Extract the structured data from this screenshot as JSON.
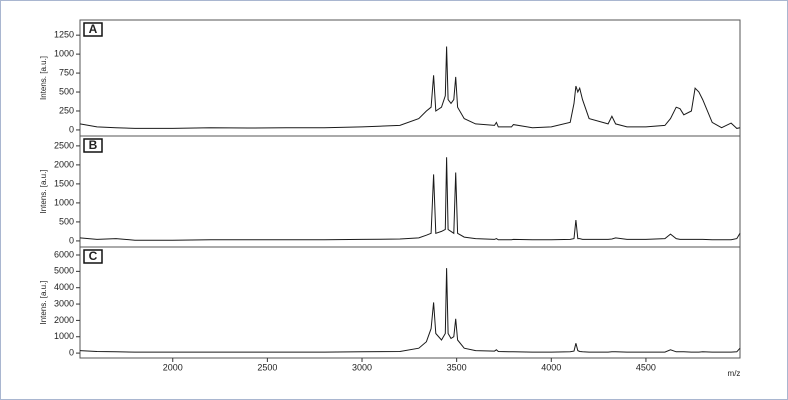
{
  "chart_data": [
    {
      "type": "line",
      "panel_label": "A",
      "ylabel": "Intens. [a.u.]",
      "x": [
        1510,
        1600,
        1700,
        1800,
        2000,
        2200,
        2400,
        2600,
        2800,
        3000,
        3200,
        3300,
        3340,
        3365,
        3378,
        3390,
        3420,
        3440,
        3447,
        3455,
        3470,
        3485,
        3495,
        3505,
        3540,
        3600,
        3700,
        3710,
        3720,
        3790,
        3800,
        3900,
        4000,
        4100,
        4120,
        4130,
        4140,
        4150,
        4165,
        4200,
        4300,
        4320,
        4340,
        4400,
        4500,
        4600,
        4630,
        4660,
        4680,
        4700,
        4740,
        4760,
        4780,
        4800,
        4850,
        4900,
        4950,
        4980,
        4997
      ],
      "series": [
        {
          "color": "#1a1a1a",
          "values": [
            80,
            40,
            30,
            20,
            20,
            30,
            25,
            30,
            30,
            40,
            60,
            150,
            250,
            300,
            720,
            250,
            300,
            450,
            1100,
            400,
            350,
            400,
            700,
            300,
            150,
            80,
            60,
            100,
            40,
            40,
            70,
            30,
            40,
            100,
            350,
            580,
            500,
            550,
            400,
            150,
            80,
            180,
            80,
            40,
            40,
            60,
            150,
            300,
            280,
            200,
            250,
            550,
            500,
            400,
            100,
            30,
            90,
            20,
            30
          ]
        }
      ],
      "xlim": [
        1510,
        4997
      ],
      "ylim": [
        -80,
        1450
      ],
      "yticks": [
        0,
        250,
        500,
        750,
        1000,
        1250
      ]
    },
    {
      "type": "line",
      "panel_label": "B",
      "ylabel": "Intens. [a.u.]",
      "x": [
        1510,
        1600,
        1700,
        1800,
        2000,
        2200,
        2400,
        2600,
        2800,
        3000,
        3200,
        3300,
        3340,
        3365,
        3378,
        3390,
        3420,
        3440,
        3447,
        3455,
        3470,
        3485,
        3495,
        3505,
        3540,
        3600,
        3700,
        3710,
        3720,
        3790,
        3800,
        3900,
        4000,
        4100,
        4120,
        4130,
        4140,
        4150,
        4165,
        4200,
        4300,
        4320,
        4340,
        4400,
        4500,
        4600,
        4630,
        4660,
        4680,
        4700,
        4740,
        4760,
        4780,
        4800,
        4850,
        4900,
        4950,
        4980,
        4997
      ],
      "series": [
        {
          "color": "#1a1a1a",
          "values": [
            80,
            40,
            60,
            20,
            20,
            30,
            30,
            30,
            30,
            40,
            50,
            80,
            150,
            200,
            1750,
            200,
            250,
            300,
            2200,
            300,
            250,
            200,
            1800,
            200,
            100,
            60,
            40,
            60,
            30,
            30,
            40,
            30,
            30,
            40,
            60,
            550,
            60,
            60,
            40,
            40,
            40,
            50,
            80,
            40,
            40,
            60,
            180,
            60,
            40,
            40,
            40,
            40,
            40,
            40,
            30,
            30,
            30,
            60,
            200
          ]
        }
      ],
      "xlim": [
        1510,
        4997
      ],
      "ylim": [
        -160,
        2760
      ],
      "yticks": [
        0,
        500,
        1000,
        1500,
        2000,
        2500
      ]
    },
    {
      "type": "line",
      "panel_label": "C",
      "ylabel": "Intens. [a.u.]",
      "xlabel": "m/z",
      "x": [
        1510,
        1600,
        1700,
        1800,
        2000,
        2200,
        2400,
        2600,
        2800,
        3000,
        3200,
        3300,
        3340,
        3365,
        3378,
        3390,
        3420,
        3440,
        3447,
        3455,
        3470,
        3485,
        3495,
        3505,
        3540,
        3600,
        3700,
        3710,
        3720,
        3790,
        3800,
        3900,
        4000,
        4100,
        4120,
        4130,
        4140,
        4150,
        4165,
        4200,
        4300,
        4320,
        4340,
        4400,
        4500,
        4600,
        4630,
        4660,
        4680,
        4700,
        4740,
        4760,
        4780,
        4800,
        4850,
        4900,
        4950,
        4980,
        4997
      ],
      "series": [
        {
          "color": "#1a1a1a",
          "values": [
            150,
            100,
            80,
            60,
            60,
            60,
            60,
            60,
            60,
            80,
            100,
            300,
            700,
            1500,
            3100,
            1200,
            800,
            1200,
            5200,
            1200,
            900,
            1000,
            2100,
            800,
            300,
            150,
            120,
            200,
            100,
            80,
            80,
            60,
            60,
            80,
            120,
            600,
            150,
            100,
            80,
            60,
            60,
            80,
            80,
            60,
            60,
            60,
            200,
            80,
            80,
            80,
            60,
            60,
            60,
            80,
            60,
            60,
            60,
            80,
            300
          ]
        }
      ],
      "xlim": [
        1510,
        4997
      ],
      "ylim": [
        -300,
        6490
      ],
      "yticks": [
        0,
        1000,
        2000,
        3000,
        4000,
        5000,
        6000
      ],
      "xticks": [
        2000,
        2500,
        3000,
        3500,
        4000,
        4500
      ]
    }
  ]
}
